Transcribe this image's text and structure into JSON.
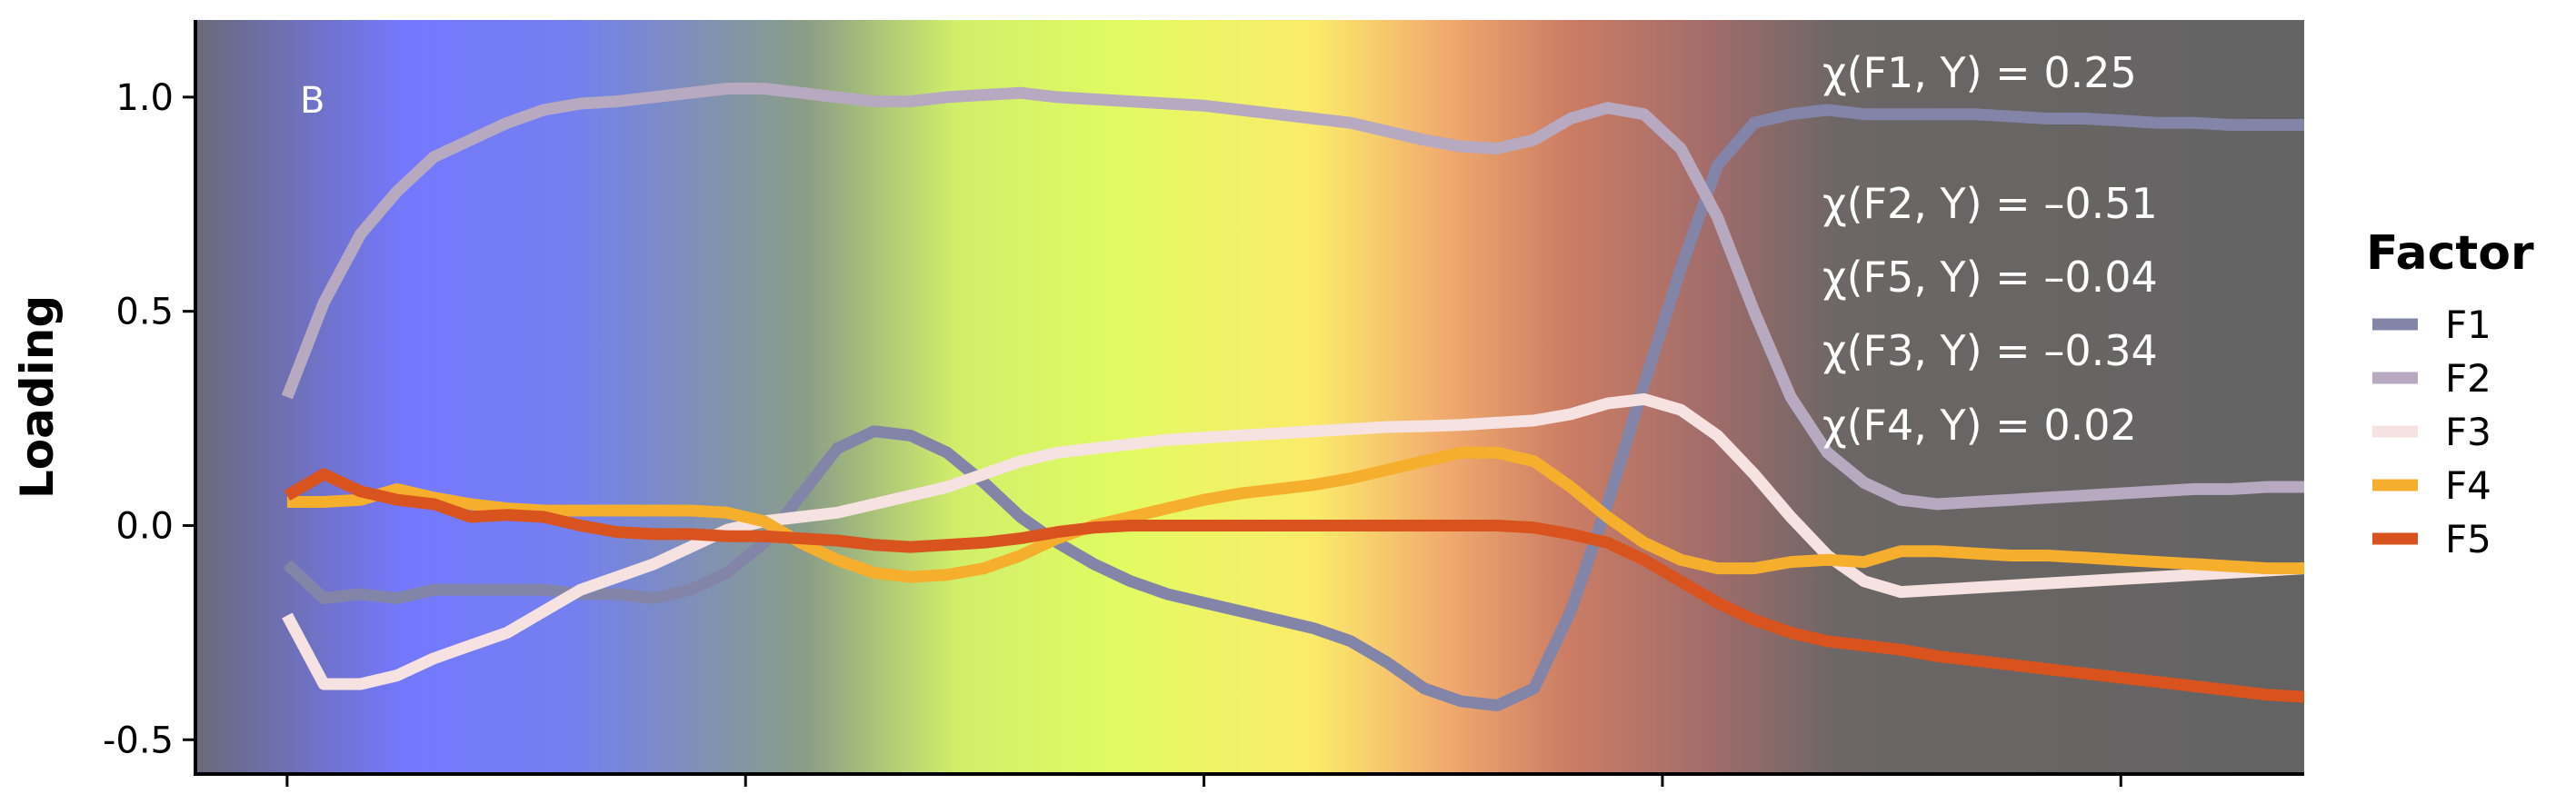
{
  "chart_data": {
    "type": "line",
    "panel_label": "B",
    "xlabel": "",
    "ylabel": "Loading",
    "ylim": [
      -0.58,
      1.18
    ],
    "xlim": [
      -0.05,
      1.1
    ],
    "yticks": [
      -0.5,
      0.0,
      0.5,
      1.0
    ],
    "ytick_labels": [
      "-0.5",
      "0.0",
      "0.5",
      "1.0"
    ],
    "xticks": [
      0.0,
      0.25,
      0.5,
      0.75,
      1.0
    ],
    "grid": false,
    "legend": {
      "title": "Factor",
      "placement": "right"
    },
    "background_gradient": [
      {
        "pos": 0.0,
        "color": "#6a6a7a"
      },
      {
        "pos": 0.1,
        "color": "#7478ff"
      },
      {
        "pos": 0.18,
        "color": "#7480ee"
      },
      {
        "pos": 0.29,
        "color": "#8a9e86"
      },
      {
        "pos": 0.36,
        "color": "#d0ee6a"
      },
      {
        "pos": 0.44,
        "color": "#e2fb62"
      },
      {
        "pos": 0.53,
        "color": "#fbeb6a"
      },
      {
        "pos": 0.59,
        "color": "#f2ad6e"
      },
      {
        "pos": 0.65,
        "color": "#cc7d64"
      },
      {
        "pos": 0.72,
        "color": "#a06c6a"
      },
      {
        "pos": 0.78,
        "color": "#6c6666"
      },
      {
        "pos": 1.0,
        "color": "#636363"
      }
    ],
    "x": [
      0.0,
      0.02,
      0.04,
      0.06,
      0.08,
      0.1,
      0.12,
      0.14,
      0.16,
      0.18,
      0.2,
      0.22,
      0.24,
      0.26,
      0.28,
      0.3,
      0.32,
      0.34,
      0.36,
      0.38,
      0.4,
      0.42,
      0.44,
      0.46,
      0.48,
      0.5,
      0.52,
      0.54,
      0.56,
      0.58,
      0.6,
      0.62,
      0.64,
      0.66,
      0.68,
      0.7,
      0.72,
      0.74,
      0.76,
      0.78,
      0.8,
      0.82,
      0.84,
      0.86,
      0.88,
      0.9,
      0.92,
      0.94,
      0.96,
      0.98,
      1.0,
      1.02,
      1.04,
      1.06,
      1.08,
      1.1
    ],
    "series": [
      {
        "name": "F1",
        "color": "#8385a8",
        "values": [
          -0.09,
          -0.17,
          -0.16,
          -0.17,
          -0.15,
          -0.15,
          -0.15,
          -0.15,
          -0.16,
          -0.16,
          -0.17,
          -0.15,
          -0.11,
          -0.04,
          0.07,
          0.18,
          0.22,
          0.21,
          0.17,
          0.1,
          0.02,
          -0.04,
          -0.09,
          -0.13,
          -0.16,
          -0.18,
          -0.2,
          -0.22,
          -0.24,
          -0.27,
          -0.32,
          -0.38,
          -0.41,
          -0.42,
          -0.38,
          -0.2,
          0.05,
          0.33,
          0.6,
          0.84,
          0.94,
          0.96,
          0.97,
          0.96,
          0.96,
          0.96,
          0.96,
          0.955,
          0.95,
          0.95,
          0.945,
          0.94,
          0.94,
          0.935,
          0.935,
          0.935
        ]
      },
      {
        "name": "F2",
        "color": "#b7a9c0",
        "values": [
          0.3,
          0.52,
          0.68,
          0.78,
          0.86,
          0.9,
          0.94,
          0.97,
          0.985,
          0.99,
          1.0,
          1.01,
          1.02,
          1.02,
          1.01,
          1.0,
          0.99,
          0.99,
          1.0,
          1.005,
          1.01,
          1.0,
          0.995,
          0.99,
          0.985,
          0.98,
          0.97,
          0.96,
          0.95,
          0.94,
          0.92,
          0.9,
          0.885,
          0.88,
          0.9,
          0.95,
          0.975,
          0.96,
          0.88,
          0.72,
          0.5,
          0.3,
          0.17,
          0.1,
          0.06,
          0.05,
          0.055,
          0.06,
          0.065,
          0.07,
          0.075,
          0.08,
          0.085,
          0.085,
          0.09,
          0.09
        ]
      },
      {
        "name": "F3",
        "color": "#f6e2e0",
        "values": [
          -0.21,
          -0.37,
          -0.37,
          -0.35,
          -0.31,
          -0.28,
          -0.25,
          -0.2,
          -0.15,
          -0.12,
          -0.09,
          -0.05,
          -0.01,
          0.01,
          0.02,
          0.03,
          0.05,
          0.07,
          0.09,
          0.12,
          0.15,
          0.17,
          0.18,
          0.19,
          0.2,
          0.205,
          0.21,
          0.215,
          0.22,
          0.225,
          0.23,
          0.232,
          0.235,
          0.24,
          0.245,
          0.26,
          0.285,
          0.295,
          0.27,
          0.21,
          0.12,
          0.02,
          -0.07,
          -0.13,
          -0.155,
          -0.15,
          -0.145,
          -0.14,
          -0.135,
          -0.13,
          -0.125,
          -0.12,
          -0.115,
          -0.11,
          -0.105,
          -0.1
        ]
      },
      {
        "name": "F4",
        "color": "#f6ae2d",
        "values": [
          0.055,
          0.055,
          0.06,
          0.085,
          0.065,
          0.05,
          0.04,
          0.035,
          0.035,
          0.035,
          0.035,
          0.035,
          0.03,
          0.01,
          -0.04,
          -0.08,
          -0.11,
          -0.12,
          -0.115,
          -0.1,
          -0.07,
          -0.03,
          0.0,
          0.02,
          0.04,
          0.06,
          0.075,
          0.085,
          0.095,
          0.11,
          0.13,
          0.15,
          0.17,
          0.17,
          0.15,
          0.09,
          0.02,
          -0.04,
          -0.08,
          -0.1,
          -0.1,
          -0.085,
          -0.08,
          -0.085,
          -0.06,
          -0.06,
          -0.065,
          -0.07,
          -0.07,
          -0.075,
          -0.08,
          -0.085,
          -0.09,
          -0.095,
          -0.1,
          -0.1
        ]
      },
      {
        "name": "F5",
        "color": "#d9531e",
        "values": [
          0.07,
          0.12,
          0.08,
          0.06,
          0.05,
          0.02,
          0.025,
          0.02,
          0.0,
          -0.015,
          -0.02,
          -0.02,
          -0.025,
          -0.025,
          -0.03,
          -0.035,
          -0.045,
          -0.05,
          -0.045,
          -0.04,
          -0.03,
          -0.015,
          -0.005,
          0.0,
          0.0,
          0.0,
          0.0,
          0.0,
          0.0,
          0.0,
          0.0,
          0.0,
          0.0,
          0.0,
          -0.005,
          -0.02,
          -0.04,
          -0.08,
          -0.13,
          -0.18,
          -0.22,
          -0.25,
          -0.27,
          -0.28,
          -0.29,
          -0.305,
          -0.315,
          -0.325,
          -0.335,
          -0.345,
          -0.355,
          -0.365,
          -0.375,
          -0.385,
          -0.395,
          -0.4
        ]
      }
    ],
    "annotations": [
      "χ(F1, Y) = 0.25",
      "χ(F2, Y) = –0.51",
      "χ(F5, Y) = –0.04",
      "χ(F3, Y) = –0.34",
      "χ(F4, Y) = 0.02"
    ]
  }
}
